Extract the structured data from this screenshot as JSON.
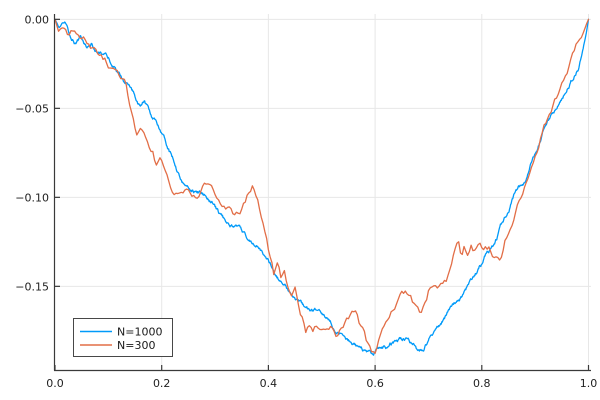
{
  "chart_data": {
    "type": "line",
    "title": "",
    "xlabel": "",
    "ylabel": "",
    "xlim": [
      0.0,
      1.0
    ],
    "ylim": [
      -0.197,
      0.003
    ],
    "grid": true,
    "legend_position": "bottom-left",
    "background_color": "#ffffff",
    "grid_color": "#e7e7e7",
    "axis_color": "#3a3a3a",
    "tick_label_color": "#212121",
    "legend_border_color": "#474747",
    "x_ticks": [
      "0.0",
      "0.2",
      "0.4",
      "0.6",
      "0.8",
      "1.0"
    ],
    "x_tick_values": [
      0.0,
      0.2,
      0.4,
      0.6,
      0.8,
      1.0
    ],
    "y_ticks": [
      "0.00",
      "−0.05",
      "−0.10",
      "−0.15"
    ],
    "y_tick_values": [
      0.0,
      -0.05,
      -0.1,
      -0.15
    ],
    "series": [
      {
        "name": "N=1000",
        "color": "#009af9",
        "n_points": 1000,
        "seed": 12345,
        "jitter_step": 0.0017,
        "jitter_decay": 0.91,
        "points": [
          [
            0.0,
            0.0
          ],
          [
            0.008,
            -0.005
          ],
          [
            0.018,
            -0.003
          ],
          [
            0.028,
            -0.01
          ],
          [
            0.038,
            -0.013
          ],
          [
            0.048,
            -0.01
          ],
          [
            0.058,
            -0.015
          ],
          [
            0.068,
            -0.014
          ],
          [
            0.08,
            -0.019
          ],
          [
            0.092,
            -0.021
          ],
          [
            0.103,
            -0.024
          ],
          [
            0.113,
            -0.028
          ],
          [
            0.124,
            -0.032
          ],
          [
            0.134,
            -0.036
          ],
          [
            0.143,
            -0.041
          ],
          [
            0.152,
            -0.045
          ],
          [
            0.16,
            -0.049
          ],
          [
            0.168,
            -0.046
          ],
          [
            0.178,
            -0.053
          ],
          [
            0.186,
            -0.057
          ],
          [
            0.196,
            -0.061
          ],
          [
            0.206,
            -0.066
          ],
          [
            0.216,
            -0.074
          ],
          [
            0.227,
            -0.082
          ],
          [
            0.237,
            -0.09
          ],
          [
            0.247,
            -0.095
          ],
          [
            0.258,
            -0.096
          ],
          [
            0.27,
            -0.098
          ],
          [
            0.282,
            -0.1
          ],
          [
            0.294,
            -0.104
          ],
          [
            0.306,
            -0.109
          ],
          [
            0.318,
            -0.113
          ],
          [
            0.33,
            -0.115
          ],
          [
            0.342,
            -0.117
          ],
          [
            0.352,
            -0.12
          ],
          [
            0.362,
            -0.124
          ],
          [
            0.373,
            -0.125
          ],
          [
            0.385,
            -0.129
          ],
          [
            0.395,
            -0.133
          ],
          [
            0.404,
            -0.138
          ],
          [
            0.413,
            -0.143
          ],
          [
            0.422,
            -0.147
          ],
          [
            0.432,
            -0.15
          ],
          [
            0.442,
            -0.155
          ],
          [
            0.452,
            -0.159
          ],
          [
            0.462,
            -0.161
          ],
          [
            0.472,
            -0.162
          ],
          [
            0.482,
            -0.164
          ],
          [
            0.492,
            -0.165
          ],
          [
            0.502,
            -0.167
          ],
          [
            0.512,
            -0.17
          ],
          [
            0.522,
            -0.173
          ],
          [
            0.532,
            -0.176
          ],
          [
            0.542,
            -0.179
          ],
          [
            0.552,
            -0.181
          ],
          [
            0.562,
            -0.183
          ],
          [
            0.572,
            -0.185
          ],
          [
            0.582,
            -0.187
          ],
          [
            0.592,
            -0.188
          ],
          [
            0.605,
            -0.186
          ],
          [
            0.62,
            -0.184
          ],
          [
            0.633,
            -0.182
          ],
          [
            0.648,
            -0.18
          ],
          [
            0.662,
            -0.179
          ],
          [
            0.675,
            -0.184
          ],
          [
            0.682,
            -0.187
          ],
          [
            0.692,
            -0.185
          ],
          [
            0.7,
            -0.181
          ],
          [
            0.707,
            -0.177
          ],
          [
            0.715,
            -0.174
          ],
          [
            0.724,
            -0.17
          ],
          [
            0.734,
            -0.166
          ],
          [
            0.744,
            -0.162
          ],
          [
            0.752,
            -0.159
          ],
          [
            0.76,
            -0.157
          ],
          [
            0.77,
            -0.152
          ],
          [
            0.78,
            -0.147
          ],
          [
            0.79,
            -0.142
          ],
          [
            0.8,
            -0.137
          ],
          [
            0.81,
            -0.131
          ],
          [
            0.82,
            -0.127
          ],
          [
            0.829,
            -0.122
          ],
          [
            0.838,
            -0.115
          ],
          [
            0.848,
            -0.109
          ],
          [
            0.858,
            -0.101
          ],
          [
            0.868,
            -0.095
          ],
          [
            0.878,
            -0.093
          ],
          [
            0.885,
            -0.088
          ],
          [
            0.895,
            -0.079
          ],
          [
            0.905,
            -0.071
          ],
          [
            0.915,
            -0.063
          ],
          [
            0.925,
            -0.057
          ],
          [
            0.933,
            -0.054
          ],
          [
            0.942,
            -0.05
          ],
          [
            0.952,
            -0.044
          ],
          [
            0.961,
            -0.038
          ],
          [
            0.972,
            -0.032
          ],
          [
            0.982,
            -0.027
          ],
          [
            0.99,
            -0.016
          ],
          [
            0.996,
            -0.007
          ],
          [
            1.0,
            0.0
          ]
        ]
      },
      {
        "name": "N=300",
        "color": "#e26e47",
        "n_points": 300,
        "seed": 98765,
        "jitter_step": 0.0048,
        "jitter_decay": 0.78,
        "points": [
          [
            0.0,
            0.0
          ],
          [
            0.007,
            -0.007
          ],
          [
            0.015,
            -0.004
          ],
          [
            0.025,
            -0.011
          ],
          [
            0.035,
            -0.008
          ],
          [
            0.045,
            -0.013
          ],
          [
            0.055,
            -0.01
          ],
          [
            0.065,
            -0.016
          ],
          [
            0.078,
            -0.018
          ],
          [
            0.09,
            -0.022
          ],
          [
            0.102,
            -0.026
          ],
          [
            0.112,
            -0.03
          ],
          [
            0.122,
            -0.034
          ],
          [
            0.132,
            -0.038
          ],
          [
            0.14,
            -0.048
          ],
          [
            0.147,
            -0.053
          ],
          [
            0.153,
            -0.061
          ],
          [
            0.16,
            -0.056
          ],
          [
            0.168,
            -0.064
          ],
          [
            0.175,
            -0.069
          ],
          [
            0.183,
            -0.074
          ],
          [
            0.19,
            -0.082
          ],
          [
            0.197,
            -0.078
          ],
          [
            0.205,
            -0.087
          ],
          [
            0.213,
            -0.092
          ],
          [
            0.22,
            -0.097
          ],
          [
            0.228,
            -0.099
          ],
          [
            0.237,
            -0.096
          ],
          [
            0.247,
            -0.095
          ],
          [
            0.257,
            -0.097
          ],
          [
            0.267,
            -0.1
          ],
          [
            0.277,
            -0.096
          ],
          [
            0.287,
            -0.093
          ],
          [
            0.295,
            -0.092
          ],
          [
            0.303,
            -0.098
          ],
          [
            0.312,
            -0.104
          ],
          [
            0.32,
            -0.107
          ],
          [
            0.328,
            -0.104
          ],
          [
            0.337,
            -0.11
          ],
          [
            0.347,
            -0.107
          ],
          [
            0.357,
            -0.101
          ],
          [
            0.366,
            -0.096
          ],
          [
            0.372,
            -0.093
          ],
          [
            0.38,
            -0.101
          ],
          [
            0.388,
            -0.112
          ],
          [
            0.396,
            -0.121
          ],
          [
            0.404,
            -0.133
          ],
          [
            0.41,
            -0.142
          ],
          [
            0.417,
            -0.136
          ],
          [
            0.424,
            -0.147
          ],
          [
            0.43,
            -0.143
          ],
          [
            0.437,
            -0.152
          ],
          [
            0.444,
            -0.156
          ],
          [
            0.45,
            -0.153
          ],
          [
            0.457,
            -0.161
          ],
          [
            0.464,
            -0.168
          ],
          [
            0.47,
            -0.174
          ],
          [
            0.477,
            -0.171
          ],
          [
            0.484,
            -0.176
          ],
          [
            0.49,
            -0.173
          ],
          [
            0.497,
            -0.176
          ],
          [
            0.504,
            -0.173
          ],
          [
            0.512,
            -0.175
          ],
          [
            0.52,
            -0.173
          ],
          [
            0.528,
            -0.176
          ],
          [
            0.535,
            -0.174
          ],
          [
            0.542,
            -0.171
          ],
          [
            0.55,
            -0.167
          ],
          [
            0.557,
            -0.163
          ],
          [
            0.564,
            -0.161
          ],
          [
            0.57,
            -0.168
          ],
          [
            0.577,
            -0.173
          ],
          [
            0.584,
            -0.18
          ],
          [
            0.592,
            -0.185
          ],
          [
            0.6,
            -0.188
          ],
          [
            0.608,
            -0.181
          ],
          [
            0.616,
            -0.173
          ],
          [
            0.624,
            -0.166
          ],
          [
            0.632,
            -0.161
          ],
          [
            0.64,
            -0.157
          ],
          [
            0.65,
            -0.154
          ],
          [
            0.66,
            -0.153
          ],
          [
            0.668,
            -0.157
          ],
          [
            0.676,
            -0.161
          ],
          [
            0.684,
            -0.166
          ],
          [
            0.692,
            -0.161
          ],
          [
            0.7,
            -0.153
          ],
          [
            0.708,
            -0.151
          ],
          [
            0.716,
            -0.153
          ],
          [
            0.724,
            -0.15
          ],
          [
            0.732,
            -0.148
          ],
          [
            0.74,
            -0.142
          ],
          [
            0.748,
            -0.132
          ],
          [
            0.756,
            -0.124
          ],
          [
            0.762,
            -0.135
          ],
          [
            0.768,
            -0.129
          ],
          [
            0.774,
            -0.135
          ],
          [
            0.78,
            -0.128
          ],
          [
            0.788,
            -0.131
          ],
          [
            0.796,
            -0.128
          ],
          [
            0.804,
            -0.13
          ],
          [
            0.812,
            -0.128
          ],
          [
            0.82,
            -0.131
          ],
          [
            0.828,
            -0.13
          ],
          [
            0.834,
            -0.134
          ],
          [
            0.84,
            -0.128
          ],
          [
            0.848,
            -0.12
          ],
          [
            0.856,
            -0.112
          ],
          [
            0.864,
            -0.107
          ],
          [
            0.872,
            -0.101
          ],
          [
            0.88,
            -0.094
          ],
          [
            0.888,
            -0.087
          ],
          [
            0.896,
            -0.079
          ],
          [
            0.904,
            -0.071
          ],
          [
            0.912,
            -0.064
          ],
          [
            0.92,
            -0.058
          ],
          [
            0.928,
            -0.053
          ],
          [
            0.936,
            -0.048
          ],
          [
            0.944,
            -0.042
          ],
          [
            0.952,
            -0.035
          ],
          [
            0.96,
            -0.029
          ],
          [
            0.968,
            -0.023
          ],
          [
            0.976,
            -0.017
          ],
          [
            0.984,
            -0.012
          ],
          [
            0.992,
            -0.006
          ],
          [
            1.0,
            0.0
          ]
        ]
      }
    ]
  }
}
